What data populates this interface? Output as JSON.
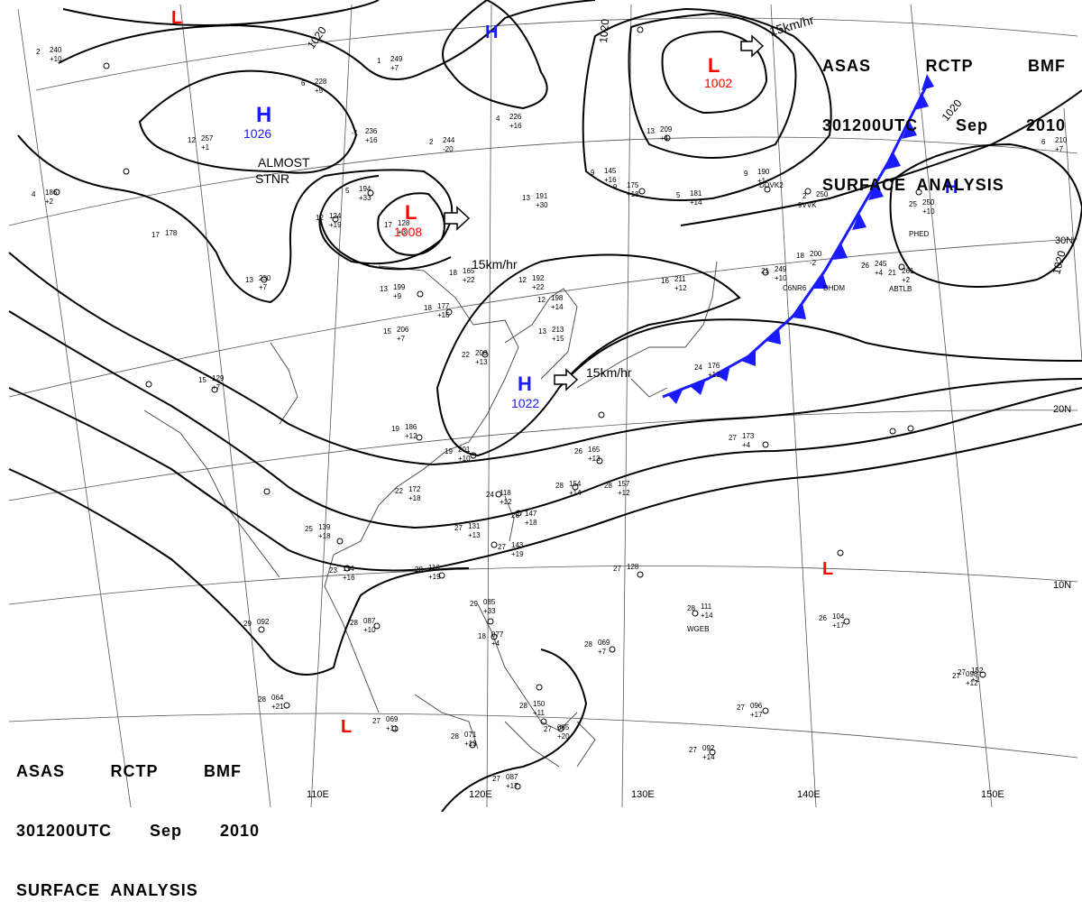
{
  "header": {
    "tr_line1": [
      "ASAS",
      "RCTP",
      "BMF"
    ],
    "tr_line2": [
      "301200UTC",
      "Sep",
      "2010"
    ],
    "tr_line3": "SURFACE  ANALYSIS",
    "bl_line1": [
      "ASAS",
      "RCTP",
      "BMF"
    ],
    "bl_line2": [
      "301200UTC",
      "Sep",
      "2010"
    ],
    "bl_line3": "SURFACE  ANALYSIS"
  },
  "pressure_centers": [
    {
      "type": "H",
      "value": "1026",
      "color": "#1a1aff"
    },
    {
      "type": "L",
      "value": "1008",
      "color": "#ff0000"
    },
    {
      "type": "L",
      "value": "1002",
      "color": "#ff0000"
    },
    {
      "type": "H",
      "value": "1022",
      "color": "#1a1aff"
    },
    {
      "type": "H",
      "value": "",
      "color": "#1a1aff"
    },
    {
      "type": "H",
      "value": "",
      "color": "#1a1aff"
    },
    {
      "type": "L",
      "value": "",
      "color": "#ff0000"
    },
    {
      "type": "L",
      "value": "",
      "color": "#ff0000"
    },
    {
      "type": "L",
      "value": "",
      "color": "#ff0000"
    }
  ],
  "movement_labels": [
    "15km/hr",
    "15km/hr",
    "15km/hr"
  ],
  "notes": {
    "almost": "ALMOST",
    "stnr": "STNR"
  },
  "isobar_labels": [
    "1020",
    "1020",
    "1020",
    "1020"
  ],
  "lon_labels": [
    "110E",
    "120E",
    "130E",
    "140E",
    "150E"
  ],
  "lat_labels": [
    "30N",
    "20N",
    "10N"
  ],
  "station_ids": [
    "DDVK2",
    "9VVK",
    "C6NR6",
    "DHDM",
    "PHED",
    "ABTLB",
    "WGEB"
  ],
  "station_plots": [
    [
      "12",
      "257",
      "+1"
    ],
    [
      "6",
      "228",
      "+5"
    ],
    [
      "1",
      "249",
      "+7"
    ],
    [
      "2",
      "244",
      "-20"
    ],
    [
      "4",
      "226",
      "+16"
    ],
    [
      "-1",
      "236",
      "+16"
    ],
    [
      "13",
      "230",
      "+7"
    ],
    [
      "12",
      "124",
      "+19"
    ],
    [
      "17",
      "128",
      "+3"
    ],
    [
      "13",
      "199",
      "+9"
    ],
    [
      "18",
      "177",
      "+16"
    ],
    [
      "15",
      "206",
      "+7"
    ],
    [
      "19",
      "186",
      "+12"
    ],
    [
      "19",
      "201",
      "+10"
    ],
    [
      "22",
      "172",
      "+18"
    ],
    [
      "22",
      "208",
      "+13"
    ],
    [
      "12",
      "198",
      "+14"
    ],
    [
      "13",
      "213",
      "+15"
    ],
    [
      "13",
      "191",
      "+30"
    ],
    [
      "18",
      "165",
      "+22"
    ],
    [
      "12",
      "192",
      "+22"
    ],
    [
      "9",
      "145",
      "+16"
    ],
    [
      "9",
      "175",
      "+18"
    ],
    [
      "5",
      "181",
      "+14"
    ],
    [
      "16",
      "211",
      "+12"
    ],
    [
      "21",
      "249",
      "+10"
    ],
    [
      "18",
      "200",
      "-2"
    ],
    [
      "24",
      "176",
      "+12"
    ],
    [
      "26",
      "165",
      "+13"
    ],
    [
      "28",
      "154",
      "+14"
    ],
    [
      "28",
      "157",
      "+12"
    ],
    [
      "24",
      "118",
      "+12"
    ],
    [
      "28",
      "147",
      "+18"
    ],
    [
      "27",
      "131",
      "+13"
    ],
    [
      "27",
      "143",
      "+19"
    ],
    [
      "25",
      "139",
      "+18"
    ],
    [
      "23",
      "114",
      "+16"
    ],
    [
      "28",
      "116",
      "+19"
    ],
    [
      "28",
      "087",
      "+10"
    ],
    [
      "29",
      "085",
      "+33"
    ],
    [
      "18",
      "077",
      "+4"
    ],
    [
      "28",
      "069",
      "+7"
    ],
    [
      "28",
      "111",
      "+14"
    ],
    [
      "26",
      "104",
      "+17"
    ],
    [
      "27",
      "098",
      "+12"
    ],
    [
      "27",
      "096",
      "+17"
    ],
    [
      "27",
      "092",
      "+14"
    ],
    [
      "28",
      "064",
      "+21"
    ],
    [
      "27",
      "069",
      "+11"
    ],
    [
      "28",
      "071",
      "+13"
    ],
    [
      "27",
      "087",
      "+17"
    ],
    [
      "27",
      "085",
      "+20"
    ],
    [
      "27",
      "128",
      ""
    ],
    [
      "5",
      "194",
      "+33"
    ],
    [
      "27",
      "173",
      "+4"
    ],
    [
      "25",
      "250",
      "+10"
    ],
    [
      "21",
      "261",
      "+2"
    ],
    [
      "26",
      "245",
      "+4"
    ],
    [
      "9",
      "190",
      "+1"
    ],
    [
      "13",
      "209",
      "+4"
    ],
    [
      "2",
      "240",
      "+10"
    ],
    [
      "4",
      "186",
      "+2"
    ],
    [
      "17",
      "178",
      ""
    ],
    [
      "15",
      "129",
      "+7"
    ],
    [
      "29",
      "092",
      ""
    ],
    [
      "2",
      "250",
      ""
    ],
    [
      "6",
      "210",
      "+7"
    ],
    [
      "27",
      "152",
      "+1"
    ],
    [
      "28",
      "150",
      "+11"
    ]
  ]
}
